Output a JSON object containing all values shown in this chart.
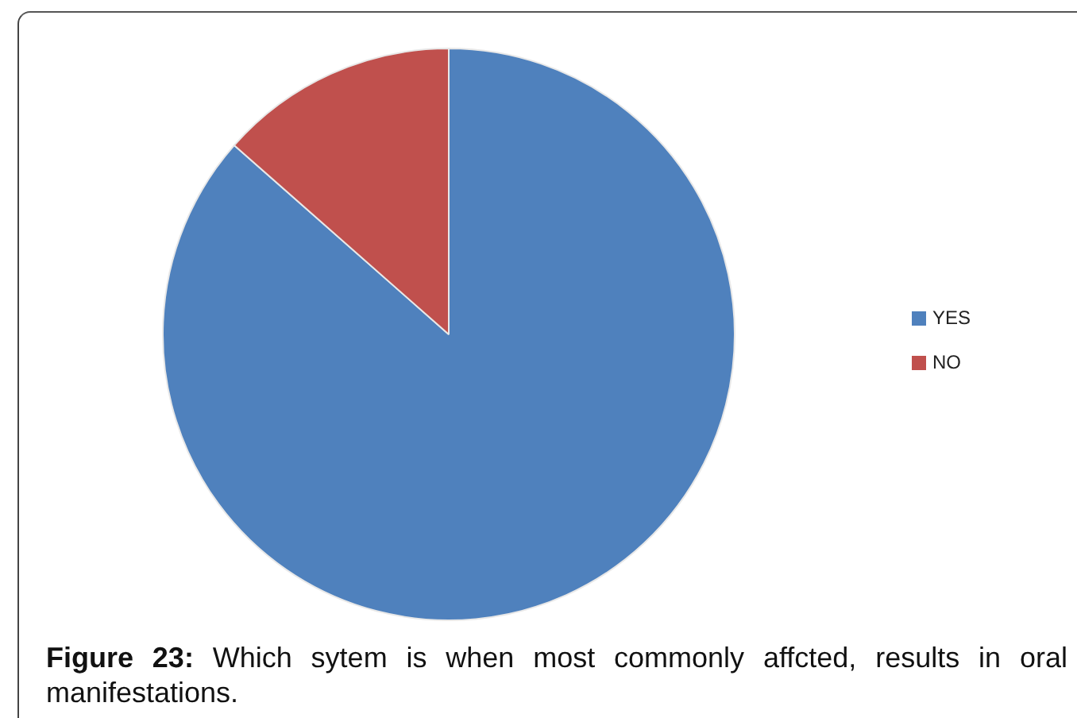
{
  "chart_data": {
    "type": "pie",
    "categories": [
      "YES",
      "NO"
    ],
    "values": [
      86.5,
      13.5
    ],
    "colors": [
      "#4f81bd",
      "#c0504d"
    ],
    "legend": "right",
    "annotations": [
      "Figure 23: Which sytem is when most commonly affcted, results in oral manifestations."
    ]
  }
}
